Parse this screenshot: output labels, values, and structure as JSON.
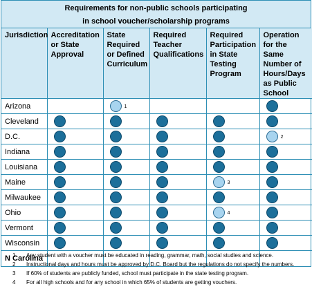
{
  "title": {
    "line1": "Requirements for non-public schools participating",
    "line2": "in school voucher/scholarship programs"
  },
  "headers": [
    "Jurisdiction",
    "Accreditation or State Approval",
    "State Required or Defined Curriculum",
    "Required Teacher Qualifications",
    "Required Participation in State Testing Program",
    "Operation for the Same Number of Hours/Days as Public School"
  ],
  "rows": [
    {
      "name": "Arizona",
      "cells": [
        "none",
        "light",
        "none",
        "none",
        "full"
      ],
      "notes": [
        "",
        "1",
        "",
        "",
        ""
      ]
    },
    {
      "name": "Cleveland",
      "cells": [
        "full",
        "full",
        "full",
        "full",
        "full"
      ],
      "notes": [
        "",
        "",
        "",
        "",
        ""
      ]
    },
    {
      "name": "D.C.",
      "cells": [
        "full",
        "full",
        "full",
        "full",
        "light"
      ],
      "notes": [
        "",
        "",
        "",
        "",
        "2"
      ]
    },
    {
      "name": "Indiana",
      "cells": [
        "full",
        "full",
        "full",
        "full",
        "full"
      ],
      "notes": [
        "",
        "",
        "",
        "",
        ""
      ]
    },
    {
      "name": "Louisiana",
      "cells": [
        "full",
        "full",
        "full",
        "full",
        "full"
      ],
      "notes": [
        "",
        "",
        "",
        "",
        ""
      ]
    },
    {
      "name": "Maine",
      "cells": [
        "full",
        "full",
        "full",
        "light",
        "full"
      ],
      "notes": [
        "",
        "",
        "",
        "3",
        ""
      ]
    },
    {
      "name": "Milwaukee",
      "cells": [
        "full",
        "full",
        "full",
        "full",
        "full"
      ],
      "notes": [
        "",
        "",
        "",
        "",
        ""
      ]
    },
    {
      "name": "Ohio",
      "cells": [
        "full",
        "full",
        "full",
        "light",
        "full"
      ],
      "notes": [
        "",
        "",
        "",
        "4",
        ""
      ]
    },
    {
      "name": "Vermont",
      "cells": [
        "full",
        "full",
        "full",
        "full",
        "full"
      ],
      "notes": [
        "",
        "",
        "",
        "",
        ""
      ]
    },
    {
      "name": "Wisconsin",
      "cells": [
        "full",
        "full",
        "full",
        "full",
        "full"
      ],
      "notes": [
        "",
        "",
        "",
        "",
        ""
      ]
    },
    {
      "name": "N Carolina",
      "cells": [
        "none",
        "none",
        "none",
        "none",
        "none"
      ],
      "notes": [
        "",
        "",
        "",
        "",
        ""
      ]
    }
  ],
  "footnotes": [
    {
      "num": "1",
      "text": "Any student with a voucher must be educated in reading, grammar, math, social studies and science."
    },
    {
      "num": "2",
      "text": "Instructional days and hours must be approved by D.C. Board but the regulations do not specify the numbers."
    },
    {
      "num": "3",
      "text": "If 60% of students are publicly funded, school must participate in the state testing program."
    },
    {
      "num": "4",
      "text": "For all high schools and for any school in which 65% of students are getting vouchers."
    }
  ],
  "colors": {
    "full": "#1c6f9a",
    "light": "#a8d4ef",
    "border": "#2e8fb5",
    "header_bg": "#d2e9f4"
  }
}
